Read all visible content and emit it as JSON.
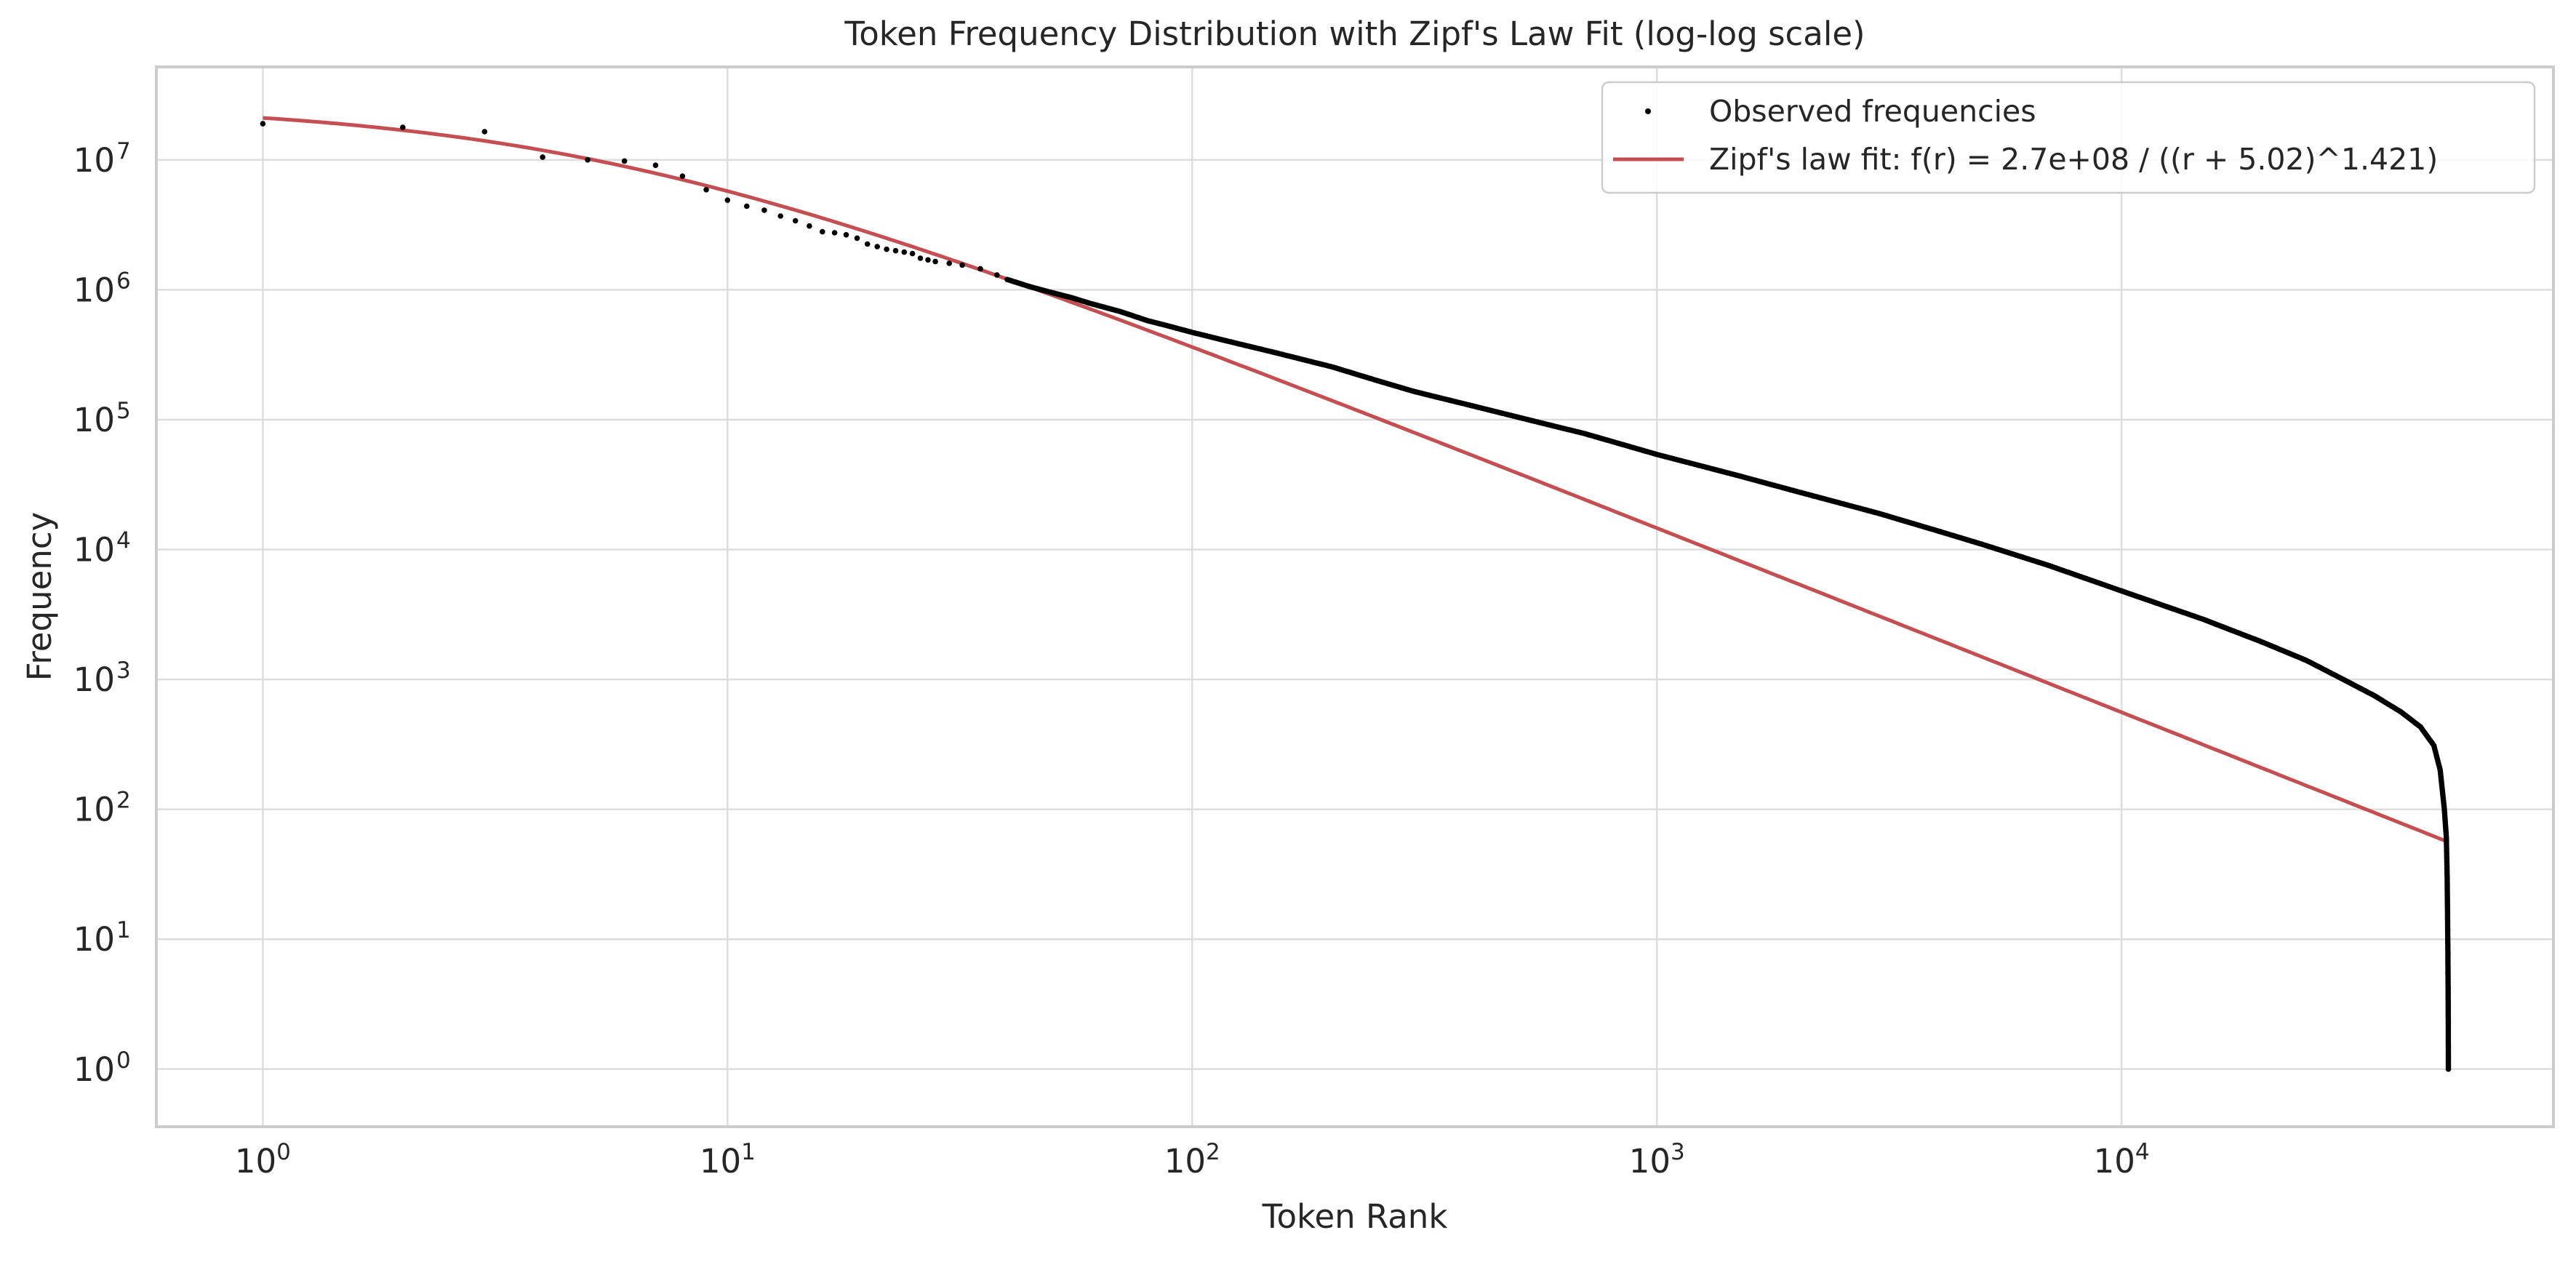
{
  "chart_data": {
    "type": "scatter",
    "title": "Token Frequency Distribution with Zipf's Law Fit (log-log scale)",
    "xlabel": "Token Rank",
    "ylabel": "Frequency",
    "x_scale": "log",
    "y_scale": "log",
    "xlim": [
      0.59,
      85000
    ],
    "ylim": [
      0.36,
      52000000
    ],
    "grid": true,
    "legend_position": "top-right",
    "x_ticks": [
      {
        "value": 1,
        "base": "10",
        "exp": "0"
      },
      {
        "value": 10,
        "base": "10",
        "exp": "1"
      },
      {
        "value": 100,
        "base": "10",
        "exp": "2"
      },
      {
        "value": 1000,
        "base": "10",
        "exp": "3"
      },
      {
        "value": 10000,
        "base": "10",
        "exp": "4"
      }
    ],
    "y_ticks": [
      {
        "value": 1,
        "base": "10",
        "exp": "0"
      },
      {
        "value": 10,
        "base": "10",
        "exp": "1"
      },
      {
        "value": 100,
        "base": "10",
        "exp": "2"
      },
      {
        "value": 1000,
        "base": "10",
        "exp": "3"
      },
      {
        "value": 10000,
        "base": "10",
        "exp": "4"
      },
      {
        "value": 100000,
        "base": "10",
        "exp": "5"
      },
      {
        "value": 1000000,
        "base": "10",
        "exp": "6"
      },
      {
        "value": 10000000,
        "base": "10",
        "exp": "7"
      }
    ],
    "series": [
      {
        "name": "Observed frequencies",
        "kind": "scatter",
        "color": "#000000",
        "points": [
          [
            1,
            19000000
          ],
          [
            2,
            17800000
          ],
          [
            3,
            16500000
          ],
          [
            4,
            10500000
          ],
          [
            5,
            10000000
          ],
          [
            6,
            9800000
          ],
          [
            7,
            9100000
          ],
          [
            8,
            7500000
          ],
          [
            9,
            5900000
          ],
          [
            10,
            4900000
          ],
          [
            11,
            4400000
          ],
          [
            12,
            4100000
          ],
          [
            13,
            3700000
          ],
          [
            14,
            3400000
          ],
          [
            15,
            3100000
          ],
          [
            16,
            2800000
          ],
          [
            17,
            2750000
          ],
          [
            18,
            2650000
          ],
          [
            19,
            2500000
          ],
          [
            20,
            2250000
          ],
          [
            21,
            2150000
          ],
          [
            22,
            2050000
          ],
          [
            23,
            2000000
          ],
          [
            24,
            1950000
          ],
          [
            25,
            1900000
          ],
          [
            26,
            1750000
          ],
          [
            27,
            1700000
          ],
          [
            28,
            1650000
          ],
          [
            30,
            1600000
          ],
          [
            32,
            1550000
          ],
          [
            35,
            1450000
          ],
          [
            38,
            1300000
          ],
          [
            40,
            1200000
          ],
          [
            45,
            1050000
          ],
          [
            50,
            950000
          ],
          [
            55,
            870000
          ],
          [
            60,
            790000
          ],
          [
            70,
            680000
          ],
          [
            80,
            580000
          ],
          [
            90,
            520000
          ],
          [
            100,
            470000
          ],
          [
            120,
            400000
          ],
          [
            150,
            330000
          ],
          [
            200,
            255000
          ],
          [
            250,
            200000
          ],
          [
            300,
            165000
          ],
          [
            400,
            128000
          ],
          [
            500,
            105000
          ],
          [
            700,
            78000
          ],
          [
            1000,
            54000
          ],
          [
            1500,
            37000
          ],
          [
            2000,
            28000
          ],
          [
            3000,
            19000
          ],
          [
            4000,
            14000
          ],
          [
            5000,
            11000
          ],
          [
            7000,
            7500
          ],
          [
            10000,
            4800
          ],
          [
            15000,
            2900
          ],
          [
            20000,
            1950
          ],
          [
            25000,
            1400
          ],
          [
            30000,
            1000
          ],
          [
            35000,
            750
          ],
          [
            40000,
            560
          ],
          [
            44000,
            430
          ],
          [
            47000,
            310
          ],
          [
            48500,
            200
          ],
          [
            49500,
            100
          ],
          [
            50000,
            60
          ],
          [
            50200,
            30
          ],
          [
            50300,
            15
          ],
          [
            50350,
            10
          ],
          [
            50380,
            8
          ],
          [
            50400,
            6
          ],
          [
            50420,
            5
          ],
          [
            50440,
            4
          ],
          [
            50460,
            3
          ],
          [
            50480,
            2
          ],
          [
            50500,
            1
          ]
        ]
      },
      {
        "name": "Zipf's law fit: f(r) = 2.7e+08 / ((r + 5.02)^1.421)",
        "kind": "line",
        "color": "#c44e52",
        "model": {
          "C": 270000000,
          "shift": 5.02,
          "exponent": 1.421,
          "x_range": [
            1,
            50500
          ]
        }
      }
    ]
  }
}
